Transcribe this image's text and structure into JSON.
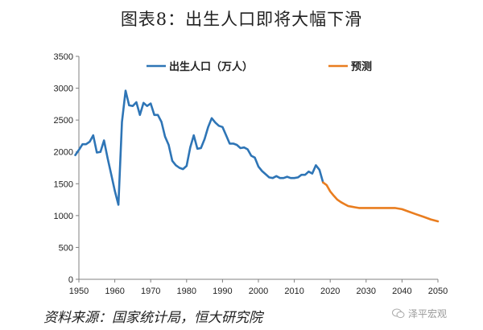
{
  "header": {
    "title": "图表8：出生人口即将大幅下滑"
  },
  "source": {
    "text": "资料来源：国家统计局，恒大研究院"
  },
  "watermark": {
    "text": "泽平宏观"
  },
  "colors": {
    "history": "#2e75b6",
    "forecast": "#e97d1f",
    "axis": "#808080"
  },
  "chart_data": {
    "type": "line",
    "title": "图表8：出生人口即将大幅下滑",
    "xlabel": "",
    "ylabel": "",
    "xlim": [
      1950,
      2050
    ],
    "ylim": [
      0,
      3500
    ],
    "x_ticks": [
      1950,
      1960,
      1970,
      1980,
      1990,
      2000,
      2010,
      2020,
      2030,
      2040,
      2050
    ],
    "y_ticks": [
      0,
      500,
      1000,
      1500,
      2000,
      2500,
      3000,
      3500
    ],
    "grid": false,
    "legend_position": "top",
    "series": [
      {
        "name": "出生人口（万人）",
        "color": "#2e75b6",
        "x": [
          1949,
          1950,
          1951,
          1952,
          1953,
          1954,
          1955,
          1956,
          1957,
          1958,
          1959,
          1960,
          1961,
          1962,
          1963,
          1964,
          1965,
          1966,
          1967,
          1968,
          1969,
          1970,
          1971,
          1972,
          1973,
          1974,
          1975,
          1976,
          1977,
          1978,
          1979,
          1980,
          1981,
          1982,
          1983,
          1984,
          1985,
          1986,
          1987,
          1988,
          1989,
          1990,
          1991,
          1992,
          1993,
          1994,
          1995,
          1996,
          1997,
          1998,
          1999,
          2000,
          2001,
          2002,
          2003,
          2004,
          2005,
          2006,
          2007,
          2008,
          2009,
          2010,
          2011,
          2012,
          2013,
          2014,
          2015,
          2016,
          2017,
          2018
        ],
        "y": [
          1950,
          2030,
          2120,
          2120,
          2160,
          2260,
          1990,
          2000,
          2180,
          1900,
          1650,
          1390,
          1170,
          2470,
          2960,
          2730,
          2720,
          2780,
          2580,
          2770,
          2720,
          2760,
          2580,
          2580,
          2470,
          2240,
          2110,
          1860,
          1790,
          1750,
          1730,
          1780,
          2070,
          2260,
          2050,
          2060,
          2200,
          2390,
          2530,
          2460,
          2410,
          2390,
          2260,
          2130,
          2130,
          2110,
          2060,
          2070,
          2040,
          1940,
          1910,
          1770,
          1700,
          1650,
          1600,
          1590,
          1620,
          1590,
          1590,
          1610,
          1590,
          1590,
          1600,
          1640,
          1640,
          1690,
          1660,
          1790,
          1720,
          1520
        ]
      },
      {
        "name": "预测",
        "color": "#e97d1f",
        "x": [
          2018,
          2019,
          2020,
          2021,
          2022,
          2023,
          2024,
          2025,
          2026,
          2027,
          2028,
          2030,
          2032,
          2034,
          2036,
          2038,
          2040,
          2042,
          2044,
          2046,
          2048,
          2050
        ],
        "y": [
          1520,
          1480,
          1380,
          1310,
          1250,
          1210,
          1180,
          1150,
          1140,
          1130,
          1120,
          1120,
          1120,
          1120,
          1120,
          1120,
          1100,
          1060,
          1020,
          980,
          940,
          910
        ]
      }
    ]
  }
}
